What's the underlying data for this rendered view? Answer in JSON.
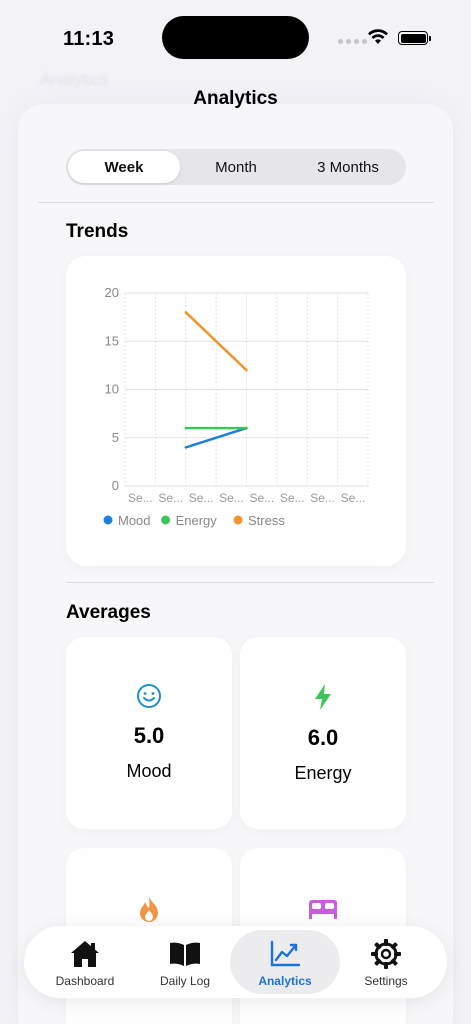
{
  "status": {
    "time": "11:13"
  },
  "ghost_title": "Analytics",
  "nav": {
    "title": "Analytics"
  },
  "segments": [
    {
      "label": "Week",
      "active": true
    },
    {
      "label": "Month",
      "active": false
    },
    {
      "label": "3 Months",
      "active": false
    }
  ],
  "trends": {
    "title": "Trends"
  },
  "chart_data": {
    "type": "line",
    "x": [
      "Se...",
      "Se...",
      "Se...",
      "Se...",
      "Se...",
      "Se...",
      "Se...",
      "Se..."
    ],
    "ylim": [
      0,
      20
    ],
    "yticks": [
      0,
      5,
      10,
      15,
      20
    ],
    "series": [
      {
        "name": "Mood",
        "color": "#1f7fe0",
        "points": [
          [
            2,
            4
          ],
          [
            4,
            6
          ]
        ]
      },
      {
        "name": "Energy",
        "color": "#3cc65a",
        "points": [
          [
            2,
            6
          ],
          [
            4,
            6
          ]
        ]
      },
      {
        "name": "Stress",
        "color": "#f0942b",
        "points": [
          [
            2,
            18
          ],
          [
            4,
            12
          ]
        ]
      }
    ],
    "legend_position": "bottom-left",
    "grid": true
  },
  "averages": {
    "title": "Averages",
    "cards": [
      {
        "value": "5.0",
        "label": "Mood",
        "icon": "smiley-icon",
        "color": "#1a8fd6"
      },
      {
        "value": "6.0",
        "label": "Energy",
        "icon": "bolt-icon",
        "color": "#3cc65a"
      },
      {
        "value": "",
        "label": "",
        "icon": "flame-icon",
        "color": "#f28a2e"
      },
      {
        "value": "",
        "label": "",
        "icon": "bed-icon",
        "color": "#c24fd6"
      }
    ]
  },
  "tabs": [
    {
      "label": "Dashboard",
      "icon": "house-icon",
      "active": false
    },
    {
      "label": "Daily Log",
      "icon": "book-icon",
      "active": false
    },
    {
      "label": "Analytics",
      "icon": "chart-icon",
      "active": true
    },
    {
      "label": "Settings",
      "icon": "gear-icon",
      "active": false
    }
  ]
}
